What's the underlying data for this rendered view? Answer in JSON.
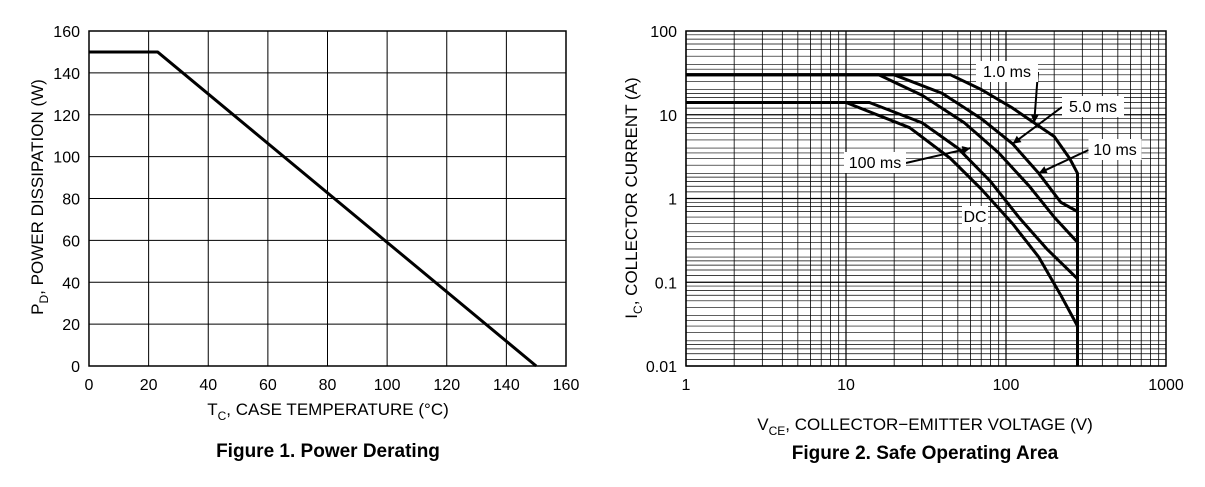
{
  "chart_data": [
    {
      "type": "line",
      "title": "Figure 1. Power Derating",
      "xlabel": {
        "main": "T",
        "sub": "C",
        "rest": ", CASE TEMPERATURE (°C)"
      },
      "ylabel": {
        "main": "P",
        "sub": "D",
        "rest": ", POWER DISSIPATION (W)"
      },
      "xlim": [
        0,
        160
      ],
      "ylim": [
        0,
        160
      ],
      "x_ticks": [
        "0",
        "20",
        "40",
        "60",
        "80",
        "100",
        "120",
        "140",
        "160"
      ],
      "y_ticks": [
        "0",
        "20",
        "40",
        "60",
        "80",
        "100",
        "120",
        "140",
        "160"
      ],
      "grid": true,
      "series": [
        {
          "x": [
            0,
            23,
            150
          ],
          "y": [
            150,
            150,
            0
          ]
        }
      ]
    },
    {
      "type": "line",
      "title": "Figure 2. Safe Operating Area",
      "xlabel": {
        "main": "V",
        "sub": "CE",
        "rest": ", COLLECTOR−EMITTER VOLTAGE (V)"
      },
      "ylabel": {
        "main": "I",
        "sub": "C",
        "rest": ", COLLECTOR CURRENT (A)"
      },
      "x_scale": "log",
      "y_scale": "log",
      "xlim": [
        1,
        1000
      ],
      "ylim": [
        0.01,
        100
      ],
      "x_ticks": [
        "1",
        "10",
        "100",
        "1000"
      ],
      "y_ticks": [
        "0.01",
        "0.1",
        "1",
        "10",
        "100"
      ],
      "grid": true,
      "series": [
        {
          "name": "1.0 ms",
          "x": [
            1,
            45,
            70,
            110,
            150,
            200,
            250,
            280,
            280
          ],
          "y": [
            30,
            30,
            20,
            12,
            8,
            5.5,
            3,
            2,
            0.01
          ]
        },
        {
          "name": "5.0 ms",
          "x": [
            1,
            20,
            40,
            70,
            110,
            160,
            220,
            280
          ],
          "y": [
            30,
            30,
            18,
            9,
            4.5,
            2,
            0.9,
            0.7
          ]
        },
        {
          "name": "10 ms",
          "x": [
            1,
            16,
            30,
            55,
            90,
            140,
            200,
            280
          ],
          "y": [
            30,
            30,
            17,
            8,
            3.5,
            1.4,
            0.6,
            0.3
          ]
        },
        {
          "name": "100 ms",
          "x": [
            1,
            14,
            30,
            50,
            80,
            120,
            180,
            280
          ],
          "y": [
            14,
            14,
            8,
            4,
            1.6,
            0.6,
            0.25,
            0.11
          ]
        },
        {
          "name": "DC",
          "x": [
            1,
            10,
            25,
            45,
            70,
            110,
            160,
            220,
            280
          ],
          "y": [
            14,
            14,
            7,
            3,
            1.3,
            0.5,
            0.2,
            0.07,
            0.03
          ]
        }
      ],
      "annotations": [
        {
          "text": "1.0 ms",
          "target_x": 150,
          "target_y": 8
        },
        {
          "text": "5.0 ms",
          "target_x": 110,
          "target_y": 4.5
        },
        {
          "text": "10 ms",
          "target_x": 160,
          "target_y": 2
        },
        {
          "text": "100 ms",
          "target_x": 60,
          "target_y": 4
        },
        {
          "text": "DC"
        }
      ]
    }
  ]
}
